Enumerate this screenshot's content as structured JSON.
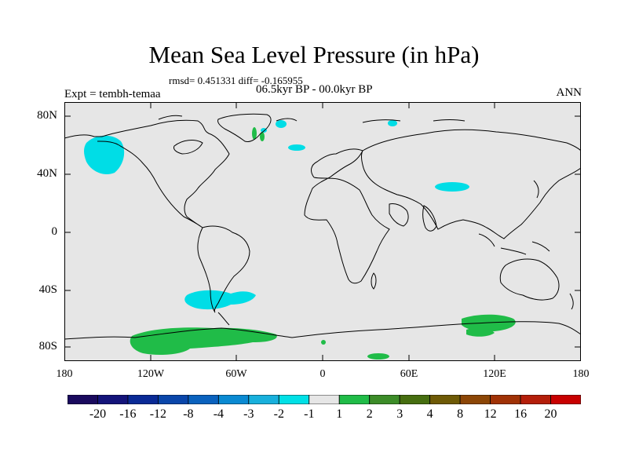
{
  "title": "Mean Sea Level Pressure (in hPa)",
  "stats_text": "rmsd= 0.451331 diff= -0.165955",
  "period_text": "06.5kyr BP - 00.0kyr BP",
  "experiment_text": "Expt = tembh-temaa",
  "season_text": "ANN",
  "lat_ticks": [
    "80N",
    "40N",
    "0",
    "40S",
    "80S"
  ],
  "lon_ticks": [
    "180",
    "120W",
    "60W",
    "0",
    "60E",
    "120E",
    "180"
  ],
  "colorbar": {
    "labels": [
      "-20",
      "-16",
      "-12",
      "-8",
      "-4",
      "-3",
      "-2",
      "-1",
      "1",
      "2",
      "3",
      "4",
      "8",
      "12",
      "16",
      "20"
    ],
    "colors": [
      "#1a0a5e",
      "#14147a",
      "#0a2a96",
      "#0a46aa",
      "#0a62be",
      "#0a8ad2",
      "#18b0dc",
      "#00e0e6",
      "#e6e6e6",
      "#20bc48",
      "#3c8c28",
      "#466e10",
      "#6e5a06",
      "#8c4606",
      "#a03206",
      "#b41e0a",
      "#c80000"
    ]
  },
  "colors": {
    "ocean_fill": "#e6e6e6",
    "negative_anomaly": "#00dde6",
    "positive_anomaly": "#20bc48",
    "coastline": "#000000"
  }
}
